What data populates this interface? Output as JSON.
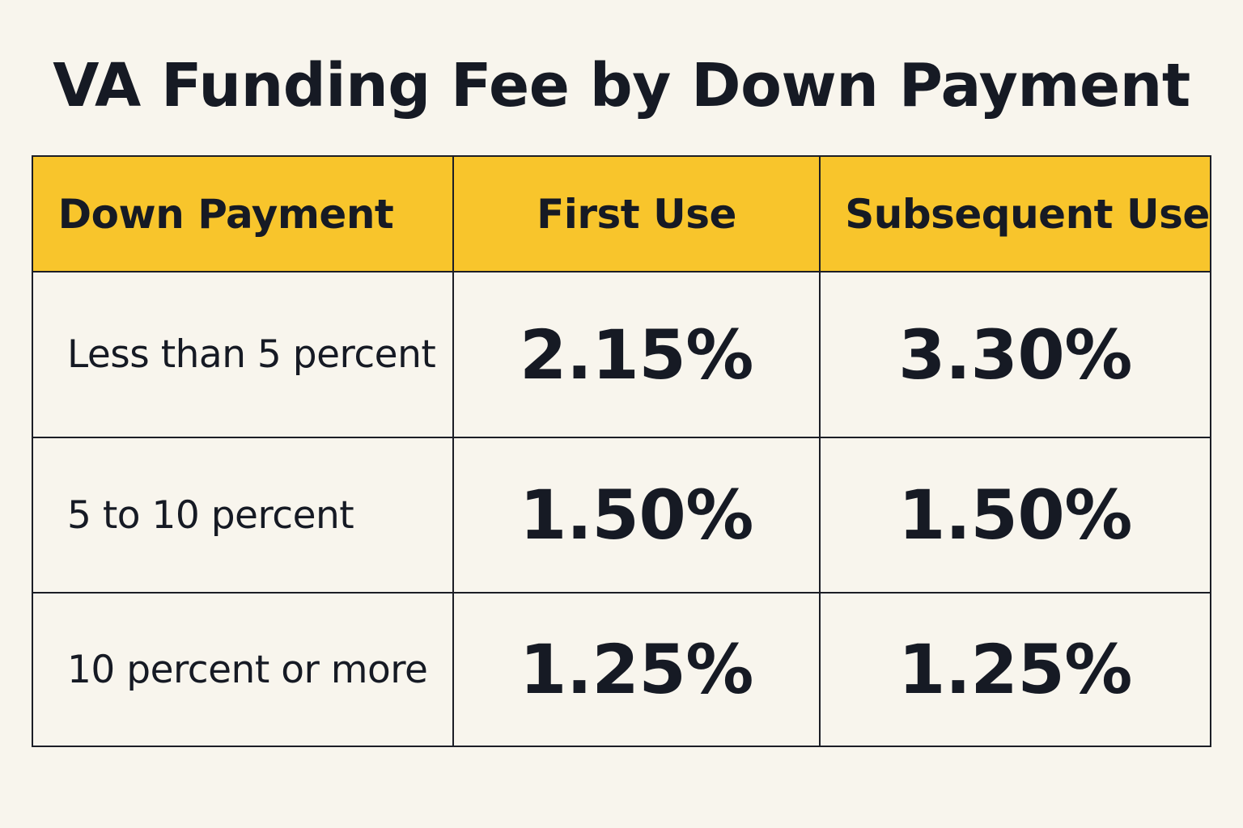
{
  "title": "VA Funding Fee by Down Payment",
  "table": {
    "headers": [
      "Down Payment",
      "First Use",
      "Subsequent Use"
    ],
    "rows": [
      {
        "down_payment": "Less than 5 percent",
        "first_use": "2.15%",
        "subsequent_use": "3.30%"
      },
      {
        "down_payment": "5 to 10 percent",
        "first_use": "1.50%",
        "subsequent_use": "1.50%"
      },
      {
        "down_payment": "10 percent or more",
        "first_use": "1.25%",
        "subsequent_use": "1.25%"
      }
    ]
  },
  "colors": {
    "header_background": "#f8c52c",
    "page_background": "#f8f5ed",
    "text": "#161a24"
  }
}
